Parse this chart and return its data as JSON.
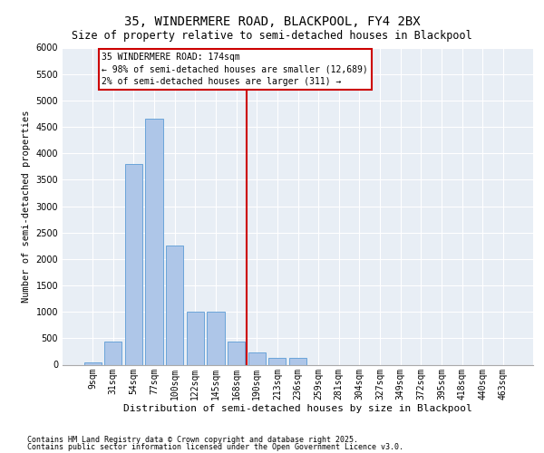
{
  "title1": "35, WINDERMERE ROAD, BLACKPOOL, FY4 2BX",
  "title2": "Size of property relative to semi-detached houses in Blackpool",
  "xlabel": "Distribution of semi-detached houses by size in Blackpool",
  "ylabel": "Number of semi-detached properties",
  "categories": [
    "9sqm",
    "31sqm",
    "54sqm",
    "77sqm",
    "100sqm",
    "122sqm",
    "145sqm",
    "168sqm",
    "190sqm",
    "213sqm",
    "236sqm",
    "259sqm",
    "281sqm",
    "304sqm",
    "327sqm",
    "349sqm",
    "372sqm",
    "395sqm",
    "418sqm",
    "440sqm",
    "463sqm"
  ],
  "values": [
    50,
    430,
    3800,
    4650,
    2250,
    1000,
    1000,
    430,
    230,
    130,
    130,
    0,
    0,
    0,
    0,
    0,
    0,
    0,
    0,
    0,
    0
  ],
  "bar_color": "#aec6e8",
  "bar_edge_color": "#5b9bd5",
  "vline_x_index": 7.5,
  "vline_color": "#cc0000",
  "annotation_text": "35 WINDERMERE ROAD: 174sqm\n← 98% of semi-detached houses are smaller (12,689)\n2% of semi-detached houses are larger (311) →",
  "annotation_box_color": "#ffffff",
  "annotation_box_edge": "#cc0000",
  "ylim": [
    0,
    6000
  ],
  "yticks": [
    0,
    500,
    1000,
    1500,
    2000,
    2500,
    3000,
    3500,
    4000,
    4500,
    5000,
    5500,
    6000
  ],
  "background_color": "#e8eef5",
  "footer1": "Contains HM Land Registry data © Crown copyright and database right 2025.",
  "footer2": "Contains public sector information licensed under the Open Government Licence v3.0.",
  "title1_fontsize": 10,
  "title2_fontsize": 8.5,
  "xlabel_fontsize": 8,
  "ylabel_fontsize": 7.5,
  "tick_fontsize": 7,
  "annot_fontsize": 7,
  "footer_fontsize": 6
}
